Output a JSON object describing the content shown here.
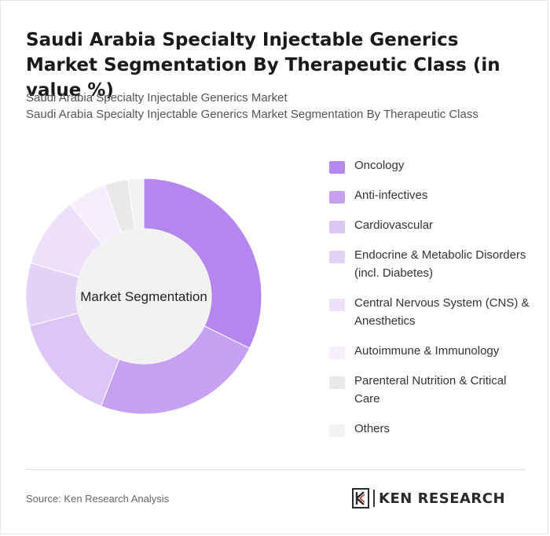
{
  "header": {
    "title": "Saudi Arabia Specialty Injectable Generics Market Segmentation By Therapeutic Class (in value %)",
    "subtitle_line1": "Saudi Arabia Specialty Injectable Generics Market",
    "subtitle_line2": "Saudi Arabia Specialty Injectable Generics Market Segmentation By Therapeutic Class"
  },
  "chart_data": {
    "type": "pie",
    "variant": "donut",
    "center_label": "Market Segmentation",
    "legend_position": "right",
    "categories": [
      "Oncology",
      "Anti-infectives",
      "Cardiovascular",
      "Endocrine & Metabolic Disorders (incl. Diabetes)",
      "Central Nervous System (CNS) & Anesthetics",
      "Autoimmune & Immunology",
      "Parenteral Nutrition & Critical Care",
      "Others"
    ],
    "values": [
      30,
      22,
      14,
      8,
      9,
      5,
      3,
      2
    ],
    "colors": [
      "#b587ee",
      "#c6a1f2",
      "#dcc5f7",
      "#e3d2f8",
      "#ece0fa",
      "#f5effc",
      "#e9e9e9",
      "#f2f2f2"
    ]
  },
  "footer": {
    "source": "Source: Ken Research Analysis",
    "brand": "KEN RESEARCH"
  }
}
